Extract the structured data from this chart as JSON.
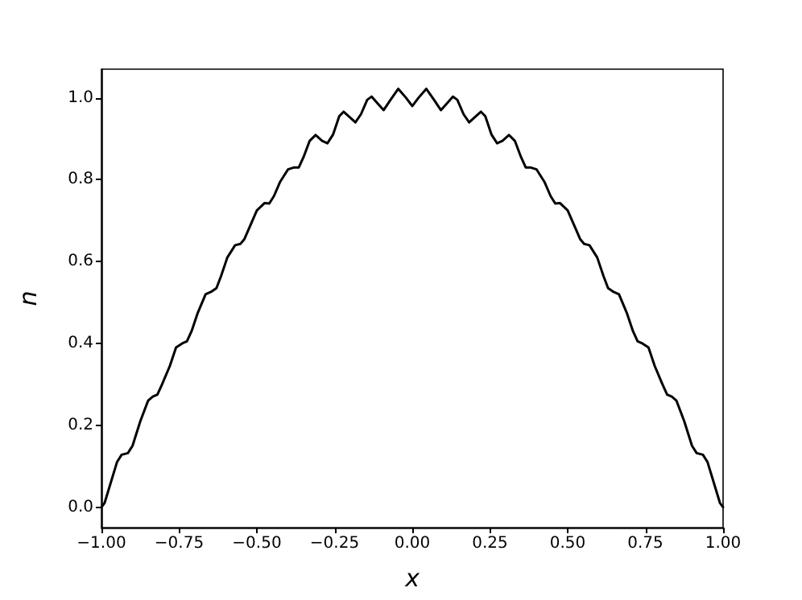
{
  "chart_data": {
    "type": "line",
    "xlabel": "x",
    "ylabel": "n",
    "color": "#000000",
    "marker": "none",
    "line_style": "solid",
    "grid": false,
    "x": [
      -1.0,
      -0.99,
      -0.97,
      -0.95,
      -0.935,
      -0.915,
      -0.9,
      -0.875,
      -0.85,
      -0.835,
      -0.82,
      -0.805,
      -0.78,
      -0.76,
      -0.74,
      -0.725,
      -0.71,
      -0.69,
      -0.665,
      -0.645,
      -0.63,
      -0.615,
      -0.595,
      -0.57,
      -0.553,
      -0.54,
      -0.52,
      -0.5,
      -0.475,
      -0.46,
      -0.445,
      -0.425,
      -0.4,
      -0.38,
      -0.365,
      -0.35,
      -0.33,
      -0.311,
      -0.29,
      -0.273,
      -0.255,
      -0.235,
      -0.221,
      -0.2,
      -0.183,
      -0.165,
      -0.145,
      -0.131,
      -0.11,
      -0.092,
      -0.07,
      -0.045,
      -0.02,
      0,
      0.02,
      0.045,
      0.07,
      0.092,
      0.11,
      0.131,
      0.145,
      0.165,
      0.183,
      0.2,
      0.221,
      0.235,
      0.255,
      0.273,
      0.29,
      0.311,
      0.33,
      0.35,
      0.365,
      0.38,
      0.4,
      0.425,
      0.445,
      0.46,
      0.475,
      0.5,
      0.52,
      0.54,
      0.553,
      0.57,
      0.595,
      0.615,
      0.63,
      0.645,
      0.665,
      0.69,
      0.71,
      0.725,
      0.74,
      0.76,
      0.78,
      0.805,
      0.82,
      0.835,
      0.85,
      0.875,
      0.9,
      0.915,
      0.935,
      0.95,
      0.97,
      0.99,
      1.0
    ],
    "values": [
      0.0,
      0.01,
      0.06,
      0.11,
      0.128,
      0.132,
      0.15,
      0.21,
      0.26,
      0.27,
      0.275,
      0.3,
      0.345,
      0.39,
      0.4,
      0.405,
      0.43,
      0.475,
      0.52,
      0.527,
      0.535,
      0.565,
      0.61,
      0.64,
      0.643,
      0.655,
      0.69,
      0.725,
      0.743,
      0.742,
      0.76,
      0.795,
      0.825,
      0.83,
      0.83,
      0.855,
      0.895,
      0.909,
      0.895,
      0.889,
      0.91,
      0.955,
      0.966,
      0.952,
      0.94,
      0.96,
      0.995,
      1.003,
      0.985,
      0.97,
      0.995,
      1.022,
      1.0,
      0.98,
      1.0,
      1.022,
      0.995,
      0.97,
      0.985,
      1.003,
      0.995,
      0.96,
      0.94,
      0.952,
      0.966,
      0.955,
      0.91,
      0.889,
      0.895,
      0.909,
      0.895,
      0.855,
      0.83,
      0.83,
      0.825,
      0.795,
      0.76,
      0.742,
      0.743,
      0.725,
      0.69,
      0.655,
      0.643,
      0.64,
      0.61,
      0.565,
      0.535,
      0.527,
      0.52,
      0.475,
      0.43,
      0.405,
      0.4,
      0.39,
      0.345,
      0.3,
      0.275,
      0.27,
      0.26,
      0.21,
      0.15,
      0.132,
      0.128,
      0.11,
      0.06,
      0.01,
      0.0
    ],
    "xlim": [
      -1.0,
      1.0
    ],
    "ylim": [
      -0.05,
      1.07
    ],
    "xticks": [
      {
        "value": -1.0,
        "label": "−1.00"
      },
      {
        "value": -0.75,
        "label": "−0.75"
      },
      {
        "value": -0.5,
        "label": "−0.50"
      },
      {
        "value": -0.25,
        "label": "−0.25"
      },
      {
        "value": 0,
        "label": "0.00"
      },
      {
        "value": 0.25,
        "label": "0.25"
      },
      {
        "value": 0.5,
        "label": "0.50"
      },
      {
        "value": 0.75,
        "label": "0.75"
      },
      {
        "value": 1.0,
        "label": "1.00"
      }
    ],
    "yticks": [
      {
        "value": 0,
        "label": "0.0"
      },
      {
        "value": 0.2,
        "label": "0.2"
      },
      {
        "value": 0.4,
        "label": "0.4"
      },
      {
        "value": 0.6,
        "label": "0.6"
      },
      {
        "value": 0.8,
        "label": "0.8"
      },
      {
        "value": 1.0,
        "label": "1.0"
      }
    ]
  }
}
